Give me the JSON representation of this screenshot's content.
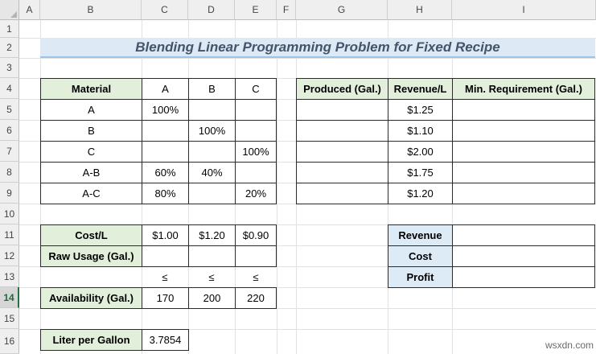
{
  "column_headers": [
    "A",
    "B",
    "C",
    "D",
    "E",
    "F",
    "G",
    "H",
    "I"
  ],
  "row_headers": [
    "1",
    "2",
    "3",
    "4",
    "5",
    "6",
    "7",
    "8",
    "9",
    "10",
    "11",
    "12",
    "13",
    "14",
    "15",
    "16"
  ],
  "selected_row": "14",
  "title": "Blending Linear Programming Problem for Fixed Recipe",
  "recipe_table": {
    "headers": [
      "Material",
      "A",
      "B",
      "C"
    ],
    "rows": [
      [
        "A",
        "100%",
        "",
        ""
      ],
      [
        "B",
        "",
        "100%",
        ""
      ],
      [
        "C",
        "",
        "",
        "100%"
      ],
      [
        "A-B",
        "60%",
        "40%",
        ""
      ],
      [
        "A-C",
        "80%",
        "",
        "20%"
      ]
    ]
  },
  "production_table": {
    "headers": [
      "Produced (Gal.)",
      "Revenue/L",
      "Min. Requirement (Gal.)"
    ],
    "rows": [
      [
        "",
        "$1.25",
        ""
      ],
      [
        "",
        "$1.10",
        ""
      ],
      [
        "",
        "$2.00",
        ""
      ],
      [
        "",
        "$1.75",
        ""
      ],
      [
        "",
        "$1.20",
        ""
      ]
    ]
  },
  "cost_table": {
    "cost_label": "Cost/L",
    "costs": [
      "$1.00",
      "$1.20",
      "$0.90"
    ],
    "usage_label": "Raw Usage (Gal.)",
    "usage": [
      "",
      "",
      ""
    ],
    "constraint_symbols": [
      "≤",
      "≤",
      "≤"
    ],
    "availability_label": "Availability (Gal.)",
    "availability": [
      "170",
      "200",
      "220"
    ]
  },
  "summary_table": {
    "rows": [
      {
        "label": "Revenue",
        "value": ""
      },
      {
        "label": "Cost",
        "value": ""
      },
      {
        "label": "Profit",
        "value": ""
      }
    ]
  },
  "conversion": {
    "label": "Liter per Gallon",
    "value": "3.7854"
  },
  "watermark": "wsxdn.com",
  "colors": {
    "header_green": "#e2efda",
    "label_blue": "#ddebf7",
    "title_band": "#dde9f5",
    "title_text": "#44546a"
  }
}
